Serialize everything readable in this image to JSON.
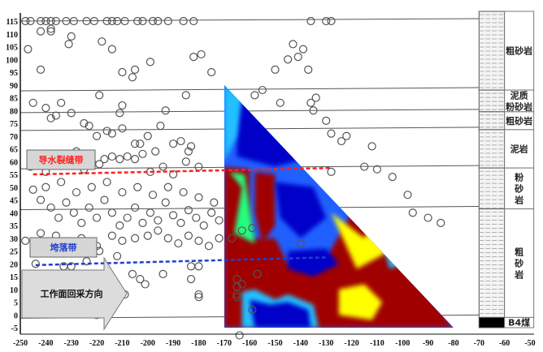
{
  "chart_data": {
    "type": "scatter",
    "xlim": [
      -250,
      -50
    ],
    "ylim": [
      -5,
      115
    ],
    "x_ticks": [
      -250,
      -240,
      -230,
      -220,
      -210,
      -200,
      -190,
      -180,
      -170,
      -160,
      -150,
      -140,
      -130,
      -120,
      -110,
      -100,
      -90,
      -80,
      -70,
      -60,
      -50
    ],
    "y_ticks": [
      -5,
      0,
      5,
      10,
      15,
      20,
      25,
      30,
      35,
      40,
      45,
      50,
      55,
      60,
      65,
      70,
      75,
      80,
      85,
      90,
      95,
      100,
      105,
      110,
      115
    ],
    "marker": "hollow-circle",
    "marker_color": "#555555",
    "points": [
      [
        -248,
        115
      ],
      [
        -246,
        115
      ],
      [
        -242,
        115
      ],
      [
        -240,
        115
      ],
      [
        -238,
        115
      ],
      [
        -236,
        115
      ],
      [
        -232,
        115
      ],
      [
        -229,
        115
      ],
      [
        -224,
        115
      ],
      [
        -221,
        115
      ],
      [
        -216,
        115
      ],
      [
        -214,
        115
      ],
      [
        -212,
        115
      ],
      [
        -209,
        115
      ],
      [
        -204,
        115
      ],
      [
        -202,
        115
      ],
      [
        -198,
        115
      ],
      [
        -196,
        115
      ],
      [
        -192,
        115
      ],
      [
        -186,
        115
      ],
      [
        -182,
        115
      ],
      [
        -136,
        115
      ],
      [
        -130,
        115
      ],
      [
        -128,
        115
      ],
      [
        -247,
        104
      ],
      [
        -242,
        111
      ],
      [
        -242,
        96
      ],
      [
        -238,
        111
      ],
      [
        -238,
        112
      ],
      [
        -231,
        106
      ],
      [
        -230,
        109
      ],
      [
        -218,
        107
      ],
      [
        -214,
        104
      ],
      [
        -210,
        95
      ],
      [
        -206,
        93
      ],
      [
        -205,
        96
      ],
      [
        -199,
        99
      ],
      [
        -182,
        101
      ],
      [
        -179,
        102
      ],
      [
        -175,
        95
      ],
      [
        -185,
        86
      ],
      [
        -219,
        86
      ],
      [
        -245,
        83
      ],
      [
        -240,
        81
      ],
      [
        -238,
        77
      ],
      [
        -236,
        78
      ],
      [
        -234,
        83
      ],
      [
        -230,
        79
      ],
      [
        -225,
        75
      ],
      [
        -223,
        74
      ],
      [
        -220,
        70
      ],
      [
        -216,
        72
      ],
      [
        -214,
        71
      ],
      [
        -210,
        82
      ],
      [
        -211,
        79
      ],
      [
        -210,
        73
      ],
      [
        -205,
        67
      ],
      [
        -203,
        67
      ],
      [
        -200,
        70
      ],
      [
        -197,
        64
      ],
      [
        -195,
        74
      ],
      [
        -193,
        80
      ],
      [
        -190,
        67
      ],
      [
        -187,
        68
      ],
      [
        -184,
        64
      ],
      [
        -183,
        66
      ],
      [
        -246,
        58
      ],
      [
        -240,
        56
      ],
      [
        -236,
        62
      ],
      [
        -232,
        60
      ],
      [
        -228,
        64
      ],
      [
        -225,
        57
      ],
      [
        -222,
        60
      ],
      [
        -219,
        59
      ],
      [
        -217,
        61
      ],
      [
        -214,
        62
      ],
      [
        -211,
        61
      ],
      [
        -208,
        62
      ],
      [
        -205,
        61
      ],
      [
        -202,
        63
      ],
      [
        -199,
        56
      ],
      [
        -194,
        58
      ],
      [
        -190,
        55
      ],
      [
        -185,
        60
      ],
      [
        -180,
        58
      ],
      [
        -150,
        96
      ],
      [
        -145,
        100
      ],
      [
        -143,
        106
      ],
      [
        -141,
        101
      ],
      [
        -139,
        104
      ],
      [
        -137,
        96
      ],
      [
        -158,
        86
      ],
      [
        -155,
        88
      ],
      [
        -148,
        83
      ],
      [
        -136,
        83
      ],
      [
        -134,
        85
      ],
      [
        -135,
        80
      ],
      [
        -130,
        76
      ],
      [
        -128,
        71
      ],
      [
        -124,
        68
      ],
      [
        -122,
        70
      ],
      [
        -115,
        58
      ],
      [
        -112,
        66
      ],
      [
        -110,
        57
      ],
      [
        -104,
        54
      ],
      [
        -98,
        47
      ],
      [
        -96,
        40
      ],
      [
        -90,
        38
      ],
      [
        -85,
        36
      ],
      [
        -128,
        56
      ],
      [
        -245,
        49
      ],
      [
        -242,
        45
      ],
      [
        -238,
        42
      ],
      [
        -235,
        38
      ],
      [
        -232,
        44
      ],
      [
        -229,
        40
      ],
      [
        -226,
        36
      ],
      [
        -223,
        42
      ],
      [
        -220,
        38
      ],
      [
        -217,
        45
      ],
      [
        -214,
        40
      ],
      [
        -211,
        35
      ],
      [
        -208,
        38
      ],
      [
        -205,
        42
      ],
      [
        -202,
        36
      ],
      [
        -199,
        40
      ],
      [
        -196,
        37
      ],
      [
        -193,
        44
      ],
      [
        -190,
        39
      ],
      [
        -187,
        36
      ],
      [
        -184,
        41
      ],
      [
        -181,
        38
      ],
      [
        -178,
        35
      ],
      [
        -175,
        40
      ],
      [
        -172,
        37
      ],
      [
        -240,
        50
      ],
      [
        -234,
        52
      ],
      [
        -228,
        48
      ],
      [
        -222,
        50
      ],
      [
        -216,
        52
      ],
      [
        -210,
        48
      ],
      [
        -204,
        50
      ],
      [
        -198,
        47
      ],
      [
        -192,
        50
      ],
      [
        -186,
        48
      ],
      [
        -180,
        46
      ],
      [
        -174,
        44
      ],
      [
        -248,
        29
      ],
      [
        -242,
        32
      ],
      [
        -236,
        31
      ],
      [
        -232,
        28
      ],
      [
        -226,
        30
      ],
      [
        -220,
        27
      ],
      [
        -214,
        31
      ],
      [
        -210,
        29
      ],
      [
        -205,
        30
      ],
      [
        -200,
        31
      ],
      [
        -196,
        33
      ],
      [
        -192,
        30
      ],
      [
        -188,
        28
      ],
      [
        -184,
        31
      ],
      [
        -180,
        29
      ],
      [
        -176,
        27
      ],
      [
        -172,
        30
      ],
      [
        -167,
        30
      ],
      [
        -163,
        33
      ],
      [
        -159,
        34
      ],
      [
        -140,
        28
      ],
      [
        -244,
        20
      ],
      [
        -239,
        16
      ],
      [
        -235,
        14
      ],
      [
        -233,
        19
      ],
      [
        -230,
        19
      ],
      [
        -224,
        21
      ],
      [
        -219,
        25
      ],
      [
        -215,
        14
      ],
      [
        -212,
        23
      ],
      [
        -209,
        8
      ],
      [
        -206,
        16
      ],
      [
        -203,
        14
      ],
      [
        -201,
        12
      ],
      [
        -194,
        16
      ],
      [
        -183,
        19
      ],
      [
        -183,
        14
      ],
      [
        -180,
        19
      ],
      [
        -180,
        8
      ],
      [
        -180,
        7
      ],
      [
        -220,
        0
      ],
      [
        -165,
        14
      ],
      [
        -165,
        11
      ],
      [
        -165,
        8
      ],
      [
        -165,
        7
      ],
      [
        -163,
        12
      ],
      [
        -159,
        2
      ],
      [
        -157,
        16
      ],
      [
        -164,
        -8
      ]
    ],
    "zones": [
      {
        "label": "导水裂缝带",
        "color": "#ff2020",
        "line_from": [
          -245,
          55
        ],
        "line_to": [
          -128,
          57.5
        ]
      },
      {
        "label": "垮落带",
        "color": "#1f3fd0",
        "line_from": [
          -244,
          19.5
        ],
        "line_to": [
          -130,
          22.5
        ]
      }
    ],
    "direction_label": "工作面回采方向",
    "contour_region": {
      "x_range": [
        -170,
        -80
      ],
      "y_range": [
        -5,
        90
      ],
      "shape": "triangle",
      "colorscale": [
        "#0000c8",
        "#2060ff",
        "#20c0ff",
        "#20ff80",
        "#ffff00",
        "#ff2000",
        "#a00000"
      ]
    },
    "strata_column": {
      "x_range": [
        -70,
        -60
      ],
      "layers": [
        {
          "name": "粗砂岩",
          "top": 115,
          "bottom": 88
        },
        {
          "name": "泥质\n粉砂岩",
          "top": 88,
          "bottom": 79.5
        },
        {
          "name": "粗砂岩",
          "top": 79.5,
          "bottom": 72.5
        },
        {
          "name": "泥岩",
          "top": 72.5,
          "bottom": 57.5
        },
        {
          "name": "粉\n砂\n岩",
          "top": 57.5,
          "bottom": 41.5
        },
        {
          "name": "粗\n砂\n岩",
          "top": 41.5,
          "bottom": -1
        },
        {
          "name": "B4煤",
          "top": -1,
          "bottom": -5
        }
      ]
    }
  }
}
